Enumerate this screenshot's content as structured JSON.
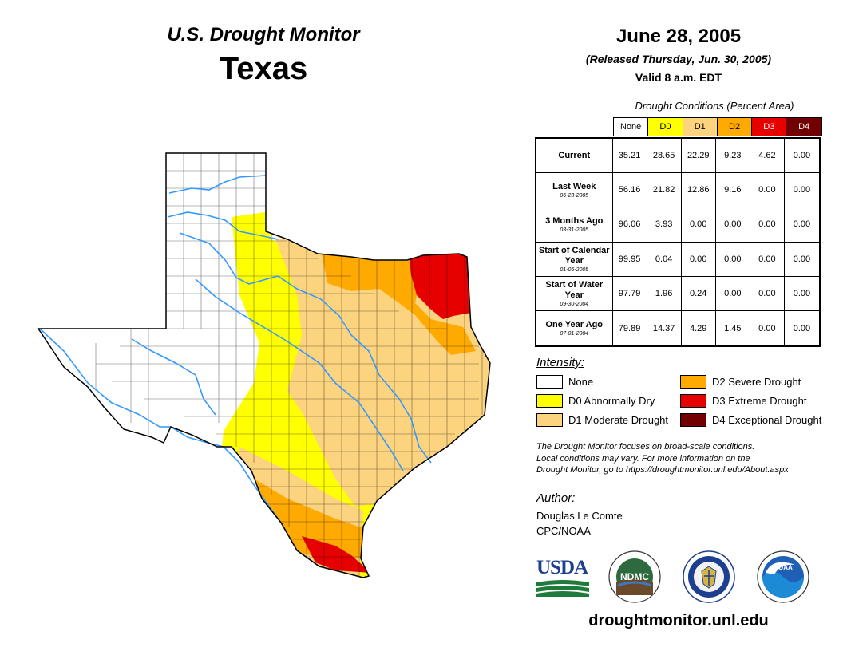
{
  "header": {
    "monitor_title": "U.S. Drought Monitor",
    "state": "Texas",
    "date": "June 28, 2005",
    "released": "(Released Thursday, Jun. 30, 2005)",
    "valid": "Valid 8 a.m. EDT"
  },
  "table": {
    "caption": "Drought Conditions (Percent Area)",
    "columns": [
      {
        "label": "None",
        "color": "#ffffff",
        "text_color": "#000000"
      },
      {
        "label": "D0",
        "color": "#ffff00",
        "text_color": "#000000"
      },
      {
        "label": "D1",
        "color": "#fcd37f",
        "text_color": "#000000"
      },
      {
        "label": "D2",
        "color": "#ffaa00",
        "text_color": "#000000"
      },
      {
        "label": "D3",
        "color": "#e60000",
        "text_color": "#ffffff"
      },
      {
        "label": "D4",
        "color": "#730000",
        "text_color": "#ffffff"
      }
    ],
    "rows": [
      {
        "label": "Current",
        "date": "",
        "values": [
          "35.21",
          "28.65",
          "22.29",
          "9.23",
          "4.62",
          "0.00"
        ]
      },
      {
        "label": "Last Week",
        "date": "06-23-2005",
        "values": [
          "56.16",
          "21.82",
          "12.86",
          "9.16",
          "0.00",
          "0.00"
        ]
      },
      {
        "label": "3 Months Ago",
        "date": "03-31-2005",
        "values": [
          "96.06",
          "3.93",
          "0.00",
          "0.00",
          "0.00",
          "0.00"
        ]
      },
      {
        "label": "Start of Calendar Year",
        "date": "01-06-2005",
        "values": [
          "99.95",
          "0.04",
          "0.00",
          "0.00",
          "0.00",
          "0.00"
        ]
      },
      {
        "label": "Start of Water Year",
        "date": "09-30-2004",
        "values": [
          "97.79",
          "1.96",
          "0.24",
          "0.00",
          "0.00",
          "0.00"
        ]
      },
      {
        "label": "One Year Ago",
        "date": "07-01-2004",
        "values": [
          "79.89",
          "14.37",
          "4.29",
          "1.45",
          "0.00",
          "0.00"
        ]
      }
    ]
  },
  "legend": {
    "title": "Intensity:",
    "items": [
      {
        "label": "None",
        "color": "#ffffff"
      },
      {
        "label": "D0 Abnormally Dry",
        "color": "#ffff00"
      },
      {
        "label": "D1 Moderate Drought",
        "color": "#fcd37f"
      },
      {
        "label": "D2 Severe Drought",
        "color": "#ffaa00"
      },
      {
        "label": "D3 Extreme Drought",
        "color": "#e60000"
      },
      {
        "label": "D4 Exceptional Drought",
        "color": "#730000"
      }
    ]
  },
  "note": {
    "line1": "The Drought Monitor focuses on broad-scale conditions.",
    "line2": "Local conditions may vary. For more information on the",
    "line3": "Drought Monitor, go to https://droughtmonitor.unl.edu/About.aspx"
  },
  "author": {
    "title": "Author:",
    "name": "Douglas Le Comte",
    "org": "CPC/NOAA"
  },
  "logos": {
    "usda": "USDA",
    "ndmc": "NDMC",
    "noaa": "NOAA"
  },
  "footer": {
    "website": "droughtmonitor.unl.edu"
  },
  "map": {
    "region": "Texas",
    "colors": {
      "none": "#ffffff",
      "d0": "#ffff00",
      "d1": "#fcd37f",
      "d2": "#ffaa00",
      "d3": "#e60000",
      "river": "#3399ff",
      "border": "#000000"
    }
  }
}
